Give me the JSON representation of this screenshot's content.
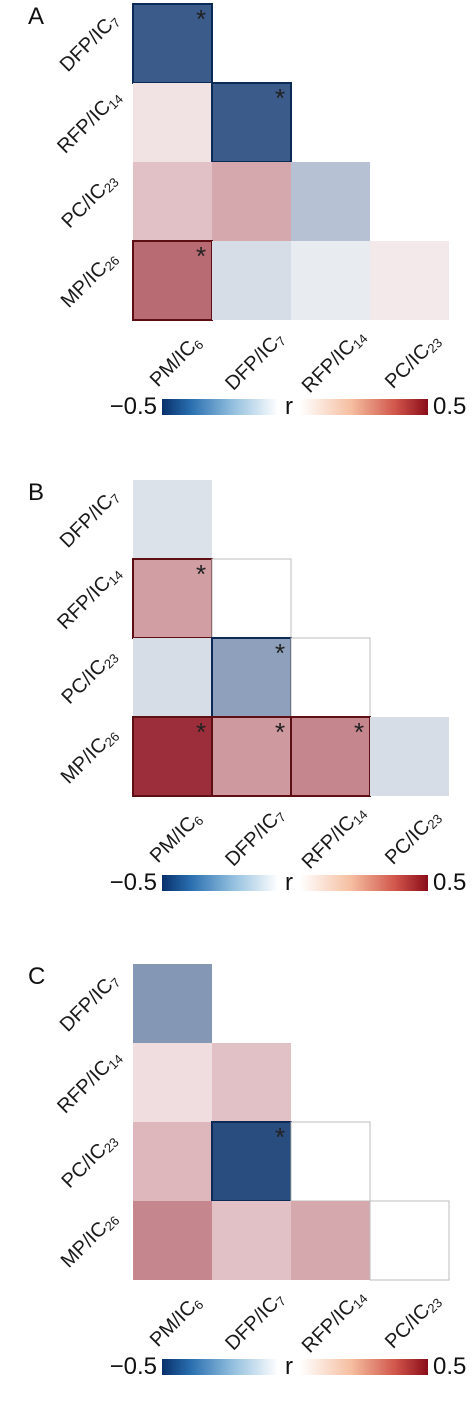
{
  "chart_data": [
    {
      "type": "heatmap",
      "panel": "A",
      "rows": [
        {
          "base": "DFP/IC",
          "sub": "7"
        },
        {
          "base": "RFP/IC",
          "sub": "14"
        },
        {
          "base": "PC/IC",
          "sub": "23"
        },
        {
          "base": "MP/IC",
          "sub": "26"
        }
      ],
      "cols": [
        {
          "base": "PM/IC",
          "sub": "6"
        },
        {
          "base": "DFP/IC",
          "sub": "7"
        },
        {
          "base": "RFP/IC",
          "sub": "14"
        },
        {
          "base": "PC/IC",
          "sub": "23"
        }
      ],
      "cells": [
        {
          "row": 0,
          "col": 0,
          "r": -0.38,
          "sig": true
        },
        {
          "row": 1,
          "col": 0,
          "r": 0.04,
          "sig": false
        },
        {
          "row": 1,
          "col": 1,
          "r": -0.38,
          "sig": true
        },
        {
          "row": 2,
          "col": 0,
          "r": 0.1,
          "sig": false
        },
        {
          "row": 2,
          "col": 1,
          "r": 0.15,
          "sig": false
        },
        {
          "row": 2,
          "col": 2,
          "r": -0.12,
          "sig": false
        },
        {
          "row": 3,
          "col": 0,
          "r": 0.28,
          "sig": true
        },
        {
          "row": 3,
          "col": 1,
          "r": -0.06,
          "sig": false
        },
        {
          "row": 3,
          "col": 2,
          "r": -0.03,
          "sig": false
        },
        {
          "row": 3,
          "col": 3,
          "r": 0.03,
          "sig": false
        }
      ],
      "colorbar": {
        "min_label": "−0.5",
        "mid_label": "r",
        "max_label": "0.5",
        "range": [
          -0.5,
          0.5
        ]
      },
      "colors": {
        "negative": "#08306b",
        "zero": "#ffffff",
        "positive": "#8b0d1a"
      }
    },
    {
      "type": "heatmap",
      "panel": "B",
      "rows": [
        {
          "base": "DFP/IC",
          "sub": "7"
        },
        {
          "base": "RFP/IC",
          "sub": "14"
        },
        {
          "base": "PC/IC",
          "sub": "23"
        },
        {
          "base": "MP/IC",
          "sub": "26"
        }
      ],
      "cols": [
        {
          "base": "PM/IC",
          "sub": "6"
        },
        {
          "base": "DFP/IC",
          "sub": "7"
        },
        {
          "base": "RFP/IC",
          "sub": "14"
        },
        {
          "base": "PC/IC",
          "sub": "23"
        }
      ],
      "cells": [
        {
          "row": 0,
          "col": 0,
          "r": -0.05,
          "sig": false
        },
        {
          "row": 1,
          "col": 0,
          "r": 0.17,
          "sig": true
        },
        {
          "row": 1,
          "col": 1,
          "r": 0.0,
          "sig": false
        },
        {
          "row": 2,
          "col": 0,
          "r": -0.06,
          "sig": false
        },
        {
          "row": 2,
          "col": 1,
          "r": -0.2,
          "sig": true
        },
        {
          "row": 2,
          "col": 2,
          "r": 0.0,
          "sig": false
        },
        {
          "row": 3,
          "col": 0,
          "r": 0.42,
          "sig": true
        },
        {
          "row": 3,
          "col": 1,
          "r": 0.18,
          "sig": true
        },
        {
          "row": 3,
          "col": 2,
          "r": 0.22,
          "sig": true
        },
        {
          "row": 3,
          "col": 3,
          "r": -0.06,
          "sig": false
        }
      ],
      "colorbar": {
        "min_label": "−0.5",
        "mid_label": "r",
        "max_label": "0.5",
        "range": [
          -0.5,
          0.5
        ]
      },
      "colors": {
        "negative": "#08306b",
        "zero": "#ffffff",
        "positive": "#8b0d1a"
      }
    },
    {
      "type": "heatmap",
      "panel": "C",
      "rows": [
        {
          "base": "DFP/IC",
          "sub": "7"
        },
        {
          "base": "RFP/IC",
          "sub": "14"
        },
        {
          "base": "PC/IC",
          "sub": "23"
        },
        {
          "base": "MP/IC",
          "sub": "26"
        }
      ],
      "cols": [
        {
          "base": "PM/IC",
          "sub": "6"
        },
        {
          "base": "DFP/IC",
          "sub": "7"
        },
        {
          "base": "RFP/IC",
          "sub": "14"
        },
        {
          "base": "PC/IC",
          "sub": "23"
        }
      ],
      "cells": [
        {
          "row": 0,
          "col": 0,
          "r": -0.22,
          "sig": false
        },
        {
          "row": 1,
          "col": 0,
          "r": 0.05,
          "sig": false
        },
        {
          "row": 1,
          "col": 1,
          "r": 0.1,
          "sig": false
        },
        {
          "row": 2,
          "col": 0,
          "r": 0.12,
          "sig": false
        },
        {
          "row": 2,
          "col": 1,
          "r": -0.42,
          "sig": true
        },
        {
          "row": 2,
          "col": 2,
          "r": 0.0,
          "sig": false
        },
        {
          "row": 3,
          "col": 0,
          "r": 0.22,
          "sig": false
        },
        {
          "row": 3,
          "col": 1,
          "r": 0.1,
          "sig": false
        },
        {
          "row": 3,
          "col": 2,
          "r": 0.15,
          "sig": false
        },
        {
          "row": 3,
          "col": 3,
          "r": 0.0,
          "sig": false
        }
      ],
      "colorbar": {
        "min_label": "−0.5",
        "mid_label": "r",
        "max_label": "0.5",
        "range": [
          -0.5,
          0.5
        ]
      },
      "colors": {
        "negative": "#08306b",
        "zero": "#ffffff",
        "positive": "#8b0d1a"
      }
    }
  ]
}
